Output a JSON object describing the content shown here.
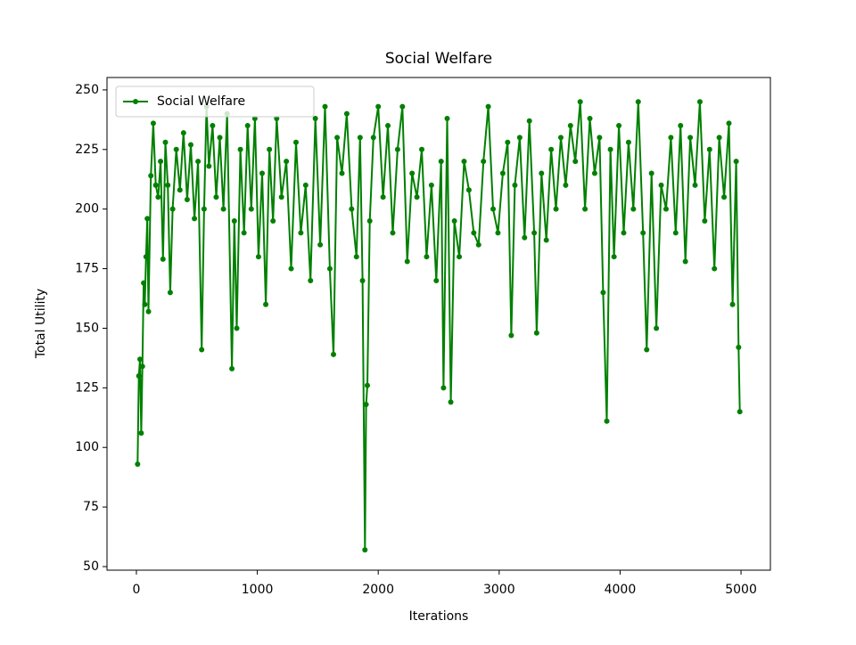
{
  "chart_data": {
    "type": "line",
    "title": "Social Welfare",
    "x_label": "Iterations",
    "y_label": "Total Utility",
    "x": [
      10,
      20,
      30,
      40,
      50,
      60,
      70,
      80,
      90,
      100,
      120,
      140,
      160,
      180,
      200,
      220,
      240,
      260,
      280,
      300,
      330,
      360,
      390,
      420,
      450,
      480,
      510,
      540,
      560,
      580,
      600,
      630,
      660,
      690,
      720,
      750,
      790,
      810,
      830,
      860,
      890,
      920,
      950,
      980,
      1010,
      1040,
      1070,
      1100,
      1130,
      1160,
      1200,
      1240,
      1280,
      1320,
      1360,
      1400,
      1440,
      1480,
      1520,
      1560,
      1600,
      1630,
      1660,
      1700,
      1740,
      1780,
      1820,
      1850,
      1870,
      1890,
      1900,
      1910,
      1930,
      1960,
      2000,
      2040,
      2080,
      2120,
      2160,
      2200,
      2240,
      2280,
      2320,
      2360,
      2400,
      2440,
      2480,
      2520,
      2540,
      2570,
      2600,
      2630,
      2670,
      2710,
      2750,
      2790,
      2830,
      2870,
      2910,
      2950,
      2990,
      3030,
      3070,
      3100,
      3130,
      3170,
      3210,
      3250,
      3290,
      3310,
      3350,
      3390,
      3430,
      3470,
      3510,
      3550,
      3590,
      3630,
      3670,
      3710,
      3750,
      3790,
      3830,
      3860,
      3890,
      3920,
      3950,
      3990,
      4030,
      4070,
      4110,
      4150,
      4190,
      4220,
      4260,
      4300,
      4340,
      4380,
      4420,
      4460,
      4500,
      4540,
      4580,
      4620,
      4660,
      4700,
      4740,
      4780,
      4820,
      4860,
      4900,
      4930,
      4960,
      4980,
      4990
    ],
    "series": [
      {
        "name": "Social Welfare",
        "color": "#008000",
        "values": [
          93,
          130,
          137,
          106,
          134,
          169,
          160,
          180,
          196,
          157,
          214,
          236,
          210,
          205,
          220,
          179,
          228,
          210,
          165,
          200,
          225,
          208,
          232,
          204,
          227,
          196,
          220,
          141,
          200,
          243,
          218,
          235,
          205,
          230,
          200,
          240,
          133,
          195,
          150,
          225,
          190,
          235,
          200,
          238,
          180,
          215,
          160,
          225,
          195,
          238,
          205,
          220,
          175,
          228,
          190,
          210,
          170,
          238,
          185,
          243,
          175,
          139,
          230,
          215,
          240,
          200,
          180,
          230,
          170,
          57,
          118,
          126,
          195,
          230,
          243,
          205,
          235,
          190,
          225,
          243,
          178,
          215,
          205,
          225,
          180,
          210,
          170,
          220,
          125,
          238,
          119,
          195,
          180,
          220,
          208,
          190,
          185,
          220,
          243,
          200,
          190,
          215,
          228,
          147,
          210,
          230,
          188,
          237,
          190,
          148,
          215,
          187,
          225,
          200,
          230,
          210,
          235,
          220,
          245,
          200,
          238,
          215,
          230,
          165,
          111,
          225,
          180,
          235,
          190,
          228,
          200,
          245,
          190,
          141,
          215,
          150,
          210,
          200,
          230,
          190,
          235,
          178,
          230,
          210,
          245,
          195,
          225,
          175,
          230,
          205,
          236,
          160,
          220,
          142,
          115
        ]
      }
    ],
    "xlim": [
      -243,
      5243
    ],
    "ylim": [
      48.5,
      255.2
    ],
    "xticks": [
      0,
      1000,
      2000,
      3000,
      4000,
      5000
    ],
    "yticks": [
      50,
      75,
      100,
      125,
      150,
      175,
      200,
      225,
      250
    ],
    "legend": "upper left"
  }
}
